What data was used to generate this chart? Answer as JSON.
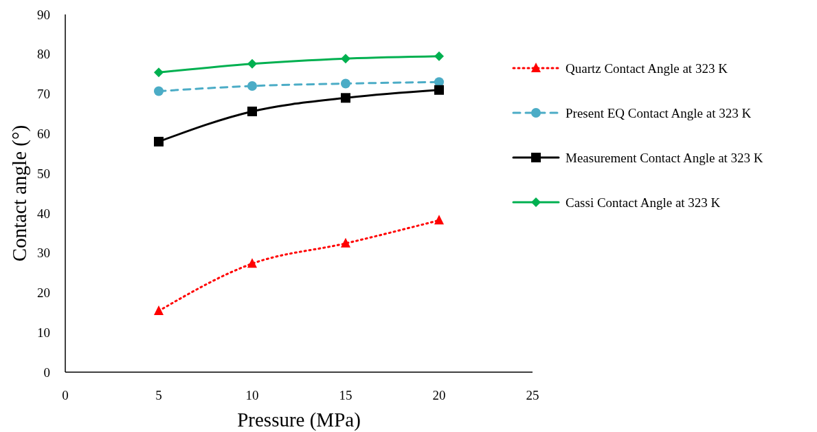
{
  "chart_data": {
    "type": "line",
    "xlabel": "Pressure (MPa)",
    "ylabel": "Contact angle (°)",
    "x": [
      5,
      10,
      15,
      20
    ],
    "xlim": [
      0,
      25
    ],
    "xticks": [
      0,
      5,
      10,
      15,
      20,
      25
    ],
    "ylim": [
      0,
      90
    ],
    "yticks": [
      0,
      10,
      20,
      30,
      40,
      50,
      60,
      70,
      80,
      90
    ],
    "grid": false,
    "legend": "right",
    "series": [
      {
        "name": "Quartz Contact Angle at 323 K",
        "color": "#ff0000",
        "values": [
          15.4,
          27.3,
          32.4,
          38.2
        ],
        "marker": "triangle",
        "line_style": "dotted"
      },
      {
        "name": "Present EQ Contact Angle at 323 K",
        "color": "#4bacc6",
        "values": [
          70.7,
          72.0,
          72.6,
          73.0
        ],
        "marker": "circle",
        "line_style": "dashed"
      },
      {
        "name": "Measurement Contact Angle at 323 K",
        "color": "#000000",
        "values": [
          58.0,
          65.6,
          69.0,
          71.0
        ],
        "marker": "square",
        "line_style": "solid"
      },
      {
        "name": "Cassi Contact Angle at 323 K",
        "color": "#00b050",
        "values": [
          75.4,
          77.6,
          78.9,
          79.5
        ],
        "marker": "diamond",
        "line_style": "solid"
      }
    ]
  }
}
